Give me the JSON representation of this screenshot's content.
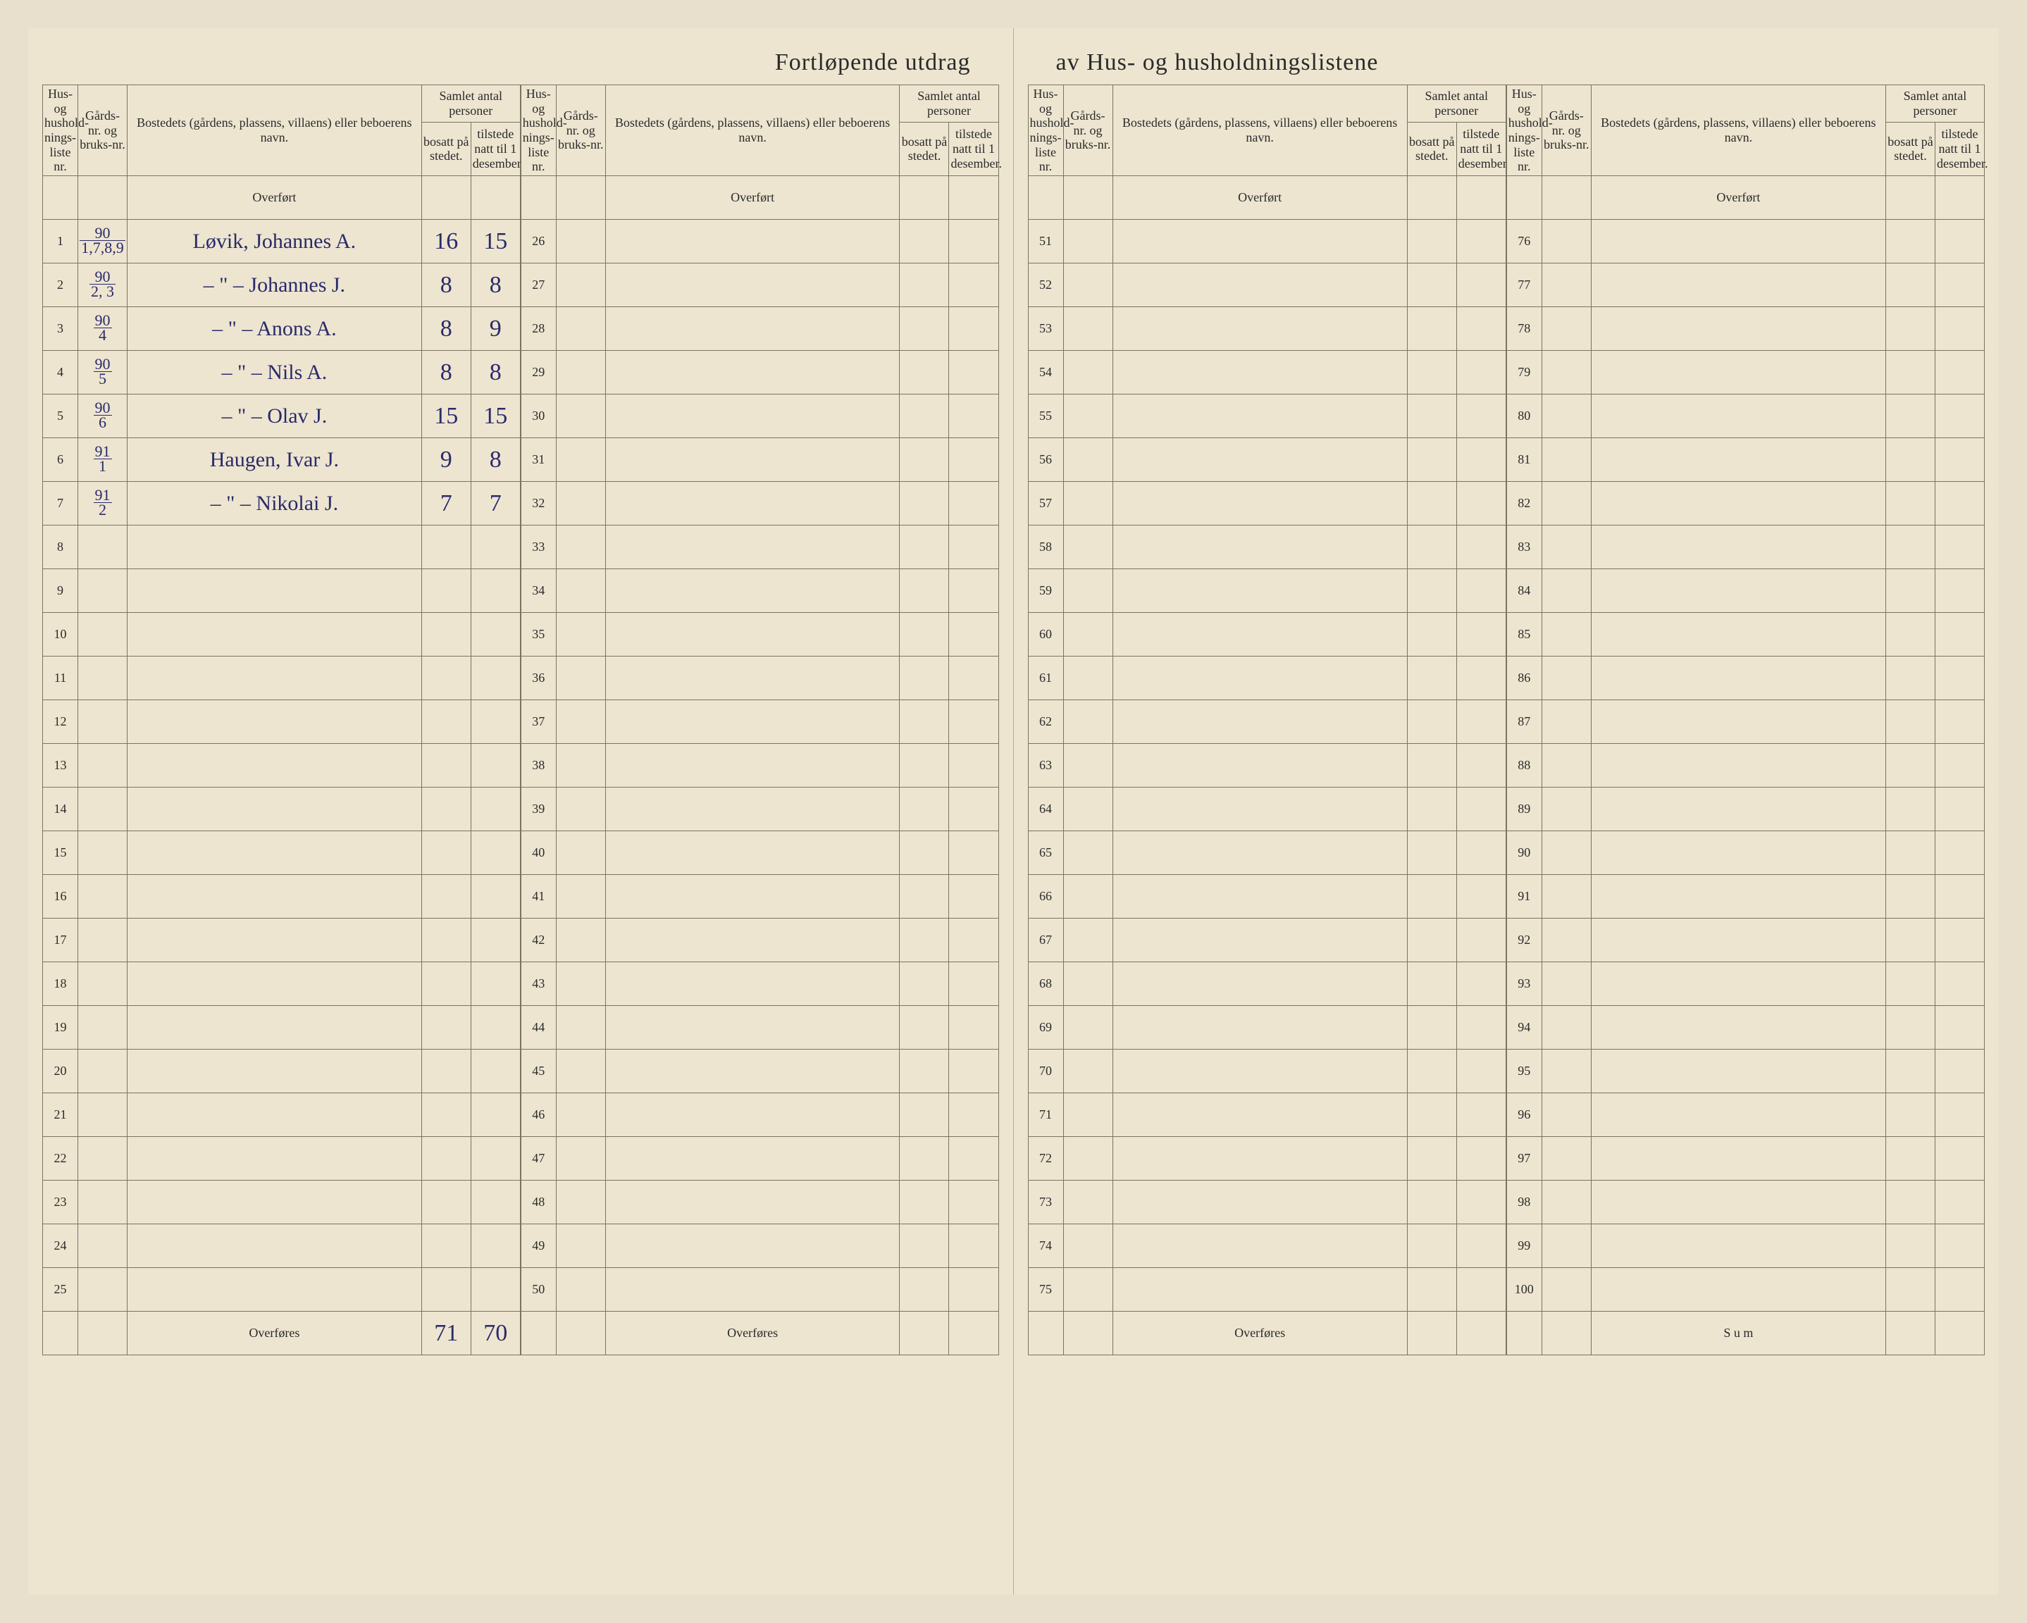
{
  "title_left": "Fortløpende utdrag",
  "title_right": "av Hus- og husholdningslistene",
  "headers": {
    "liste": "Hus- og hushold-nings-liste nr.",
    "gard": "Gårds-nr. og bruks-nr.",
    "navn": "Bostedets (gårdens, plassens, villaens) eller beboerens navn.",
    "samlet": "Samlet antal personer",
    "bosatt": "bosatt på stedet.",
    "tilstede": "tilstede natt til 1 desember."
  },
  "overfort": "Overført",
  "overfores": "Overføres",
  "sum": "S u m",
  "blocks": [
    {
      "start": 1,
      "end": 25,
      "footer": "overfores",
      "totals": {
        "bosatt": "71",
        "tilstede": "70"
      }
    },
    {
      "start": 26,
      "end": 50,
      "footer": "overfores"
    },
    {
      "start": 51,
      "end": 75,
      "footer": "overfores"
    },
    {
      "start": 76,
      "end": 100,
      "footer": "sum"
    }
  ],
  "entries": {
    "1": {
      "gard_top": "90",
      "gard_bot": "1,7,8,9",
      "navn": "Løvik, Johannes A.",
      "bosatt": "16",
      "tilstede": "15"
    },
    "2": {
      "gard_top": "90",
      "gard_bot": "2, 3",
      "navn": "– \" –  Johannes J.",
      "bosatt": "8",
      "tilstede": "8"
    },
    "3": {
      "gard_top": "90",
      "gard_bot": "4",
      "navn": "– \" –  Anons A.",
      "bosatt": "8",
      "tilstede": "9"
    },
    "4": {
      "gard_top": "90",
      "gard_bot": "5",
      "navn": "– \" –  Nils A.",
      "bosatt": "8",
      "tilstede": "8"
    },
    "5": {
      "gard_top": "90",
      "gard_bot": "6",
      "navn": "– \" –  Olav J.",
      "bosatt": "15",
      "tilstede": "15"
    },
    "6": {
      "gard_top": "91",
      "gard_bot": "1",
      "navn": "Haugen, Ivar J.",
      "bosatt": "9",
      "tilstede": "8"
    },
    "7": {
      "gard_top": "91",
      "gard_bot": "2",
      "navn": "– \" –  Nikolai J.",
      "bosatt": "7",
      "tilstede": "7"
    }
  }
}
